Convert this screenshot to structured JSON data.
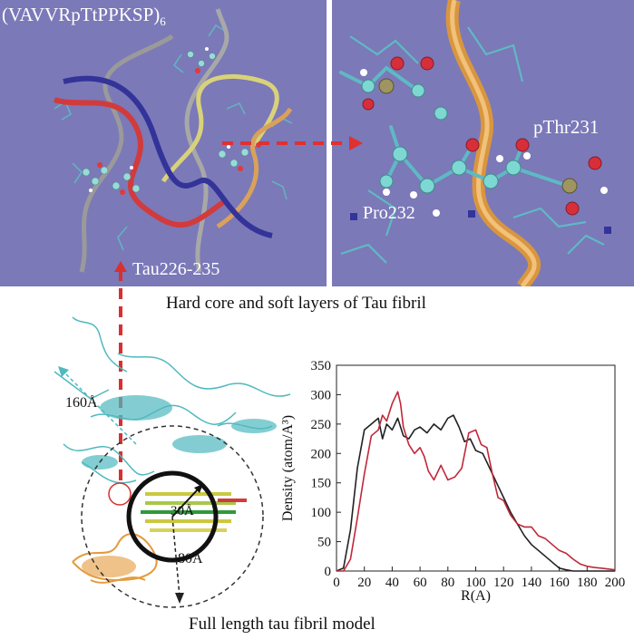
{
  "top_panels": {
    "left_label": "(VAVVRpTtPPKSP)",
    "left_label_subscript": "6",
    "tau_label": "Tau226-235",
    "right_labels": [
      "pThr231",
      "Pro232"
    ],
    "caption": "Hard core and soft layers of Tau fibril"
  },
  "model_panel": {
    "labels": [
      "160Å",
      "30Å",
      "80Å"
    ],
    "caption": "Full length tau fibril model"
  },
  "chart_data": {
    "type": "line",
    "xlabel": "R(A)",
    "ylabel": "Density (atom/A³)",
    "xlim": [
      0,
      200
    ],
    "ylim": [
      0,
      350
    ],
    "xticks": [
      0,
      20,
      40,
      60,
      80,
      100,
      120,
      140,
      160,
      180,
      200
    ],
    "yticks": [
      0,
      50,
      100,
      150,
      200,
      250,
      300,
      350
    ],
    "series": [
      {
        "color": "#222222",
        "x": [
          0,
          5,
          10,
          15,
          20,
          25,
          30,
          33,
          36,
          40,
          44,
          48,
          52,
          56,
          60,
          65,
          70,
          75,
          80,
          84,
          88,
          92,
          96,
          100,
          105,
          110,
          115,
          120,
          125,
          130,
          135,
          140,
          145,
          150,
          155,
          160,
          165,
          170,
          180,
          190,
          200
        ],
        "y": [
          0,
          5,
          70,
          175,
          240,
          250,
          260,
          225,
          250,
          240,
          260,
          230,
          225,
          240,
          245,
          235,
          250,
          240,
          260,
          265,
          245,
          220,
          225,
          205,
          200,
          175,
          150,
          125,
          100,
          80,
          60,
          45,
          35,
          25,
          15,
          5,
          2,
          0,
          0,
          0,
          0
        ]
      },
      {
        "color": "#c0283a",
        "x": [
          0,
          5,
          10,
          15,
          20,
          25,
          30,
          33,
          36,
          40,
          44,
          46,
          48,
          52,
          56,
          60,
          63,
          66,
          70,
          75,
          80,
          85,
          90,
          95,
          100,
          104,
          108,
          112,
          116,
          120,
          125,
          130,
          135,
          140,
          145,
          150,
          155,
          160,
          165,
          170,
          175,
          180,
          185,
          190,
          200
        ],
        "y": [
          0,
          0,
          20,
          90,
          165,
          230,
          240,
          265,
          255,
          285,
          305,
          285,
          245,
          215,
          200,
          210,
          195,
          170,
          155,
          180,
          155,
          160,
          175,
          235,
          240,
          215,
          210,
          165,
          125,
          120,
          95,
          80,
          75,
          75,
          60,
          55,
          45,
          35,
          30,
          20,
          12,
          8,
          6,
          5,
          2
        ]
      }
    ]
  }
}
